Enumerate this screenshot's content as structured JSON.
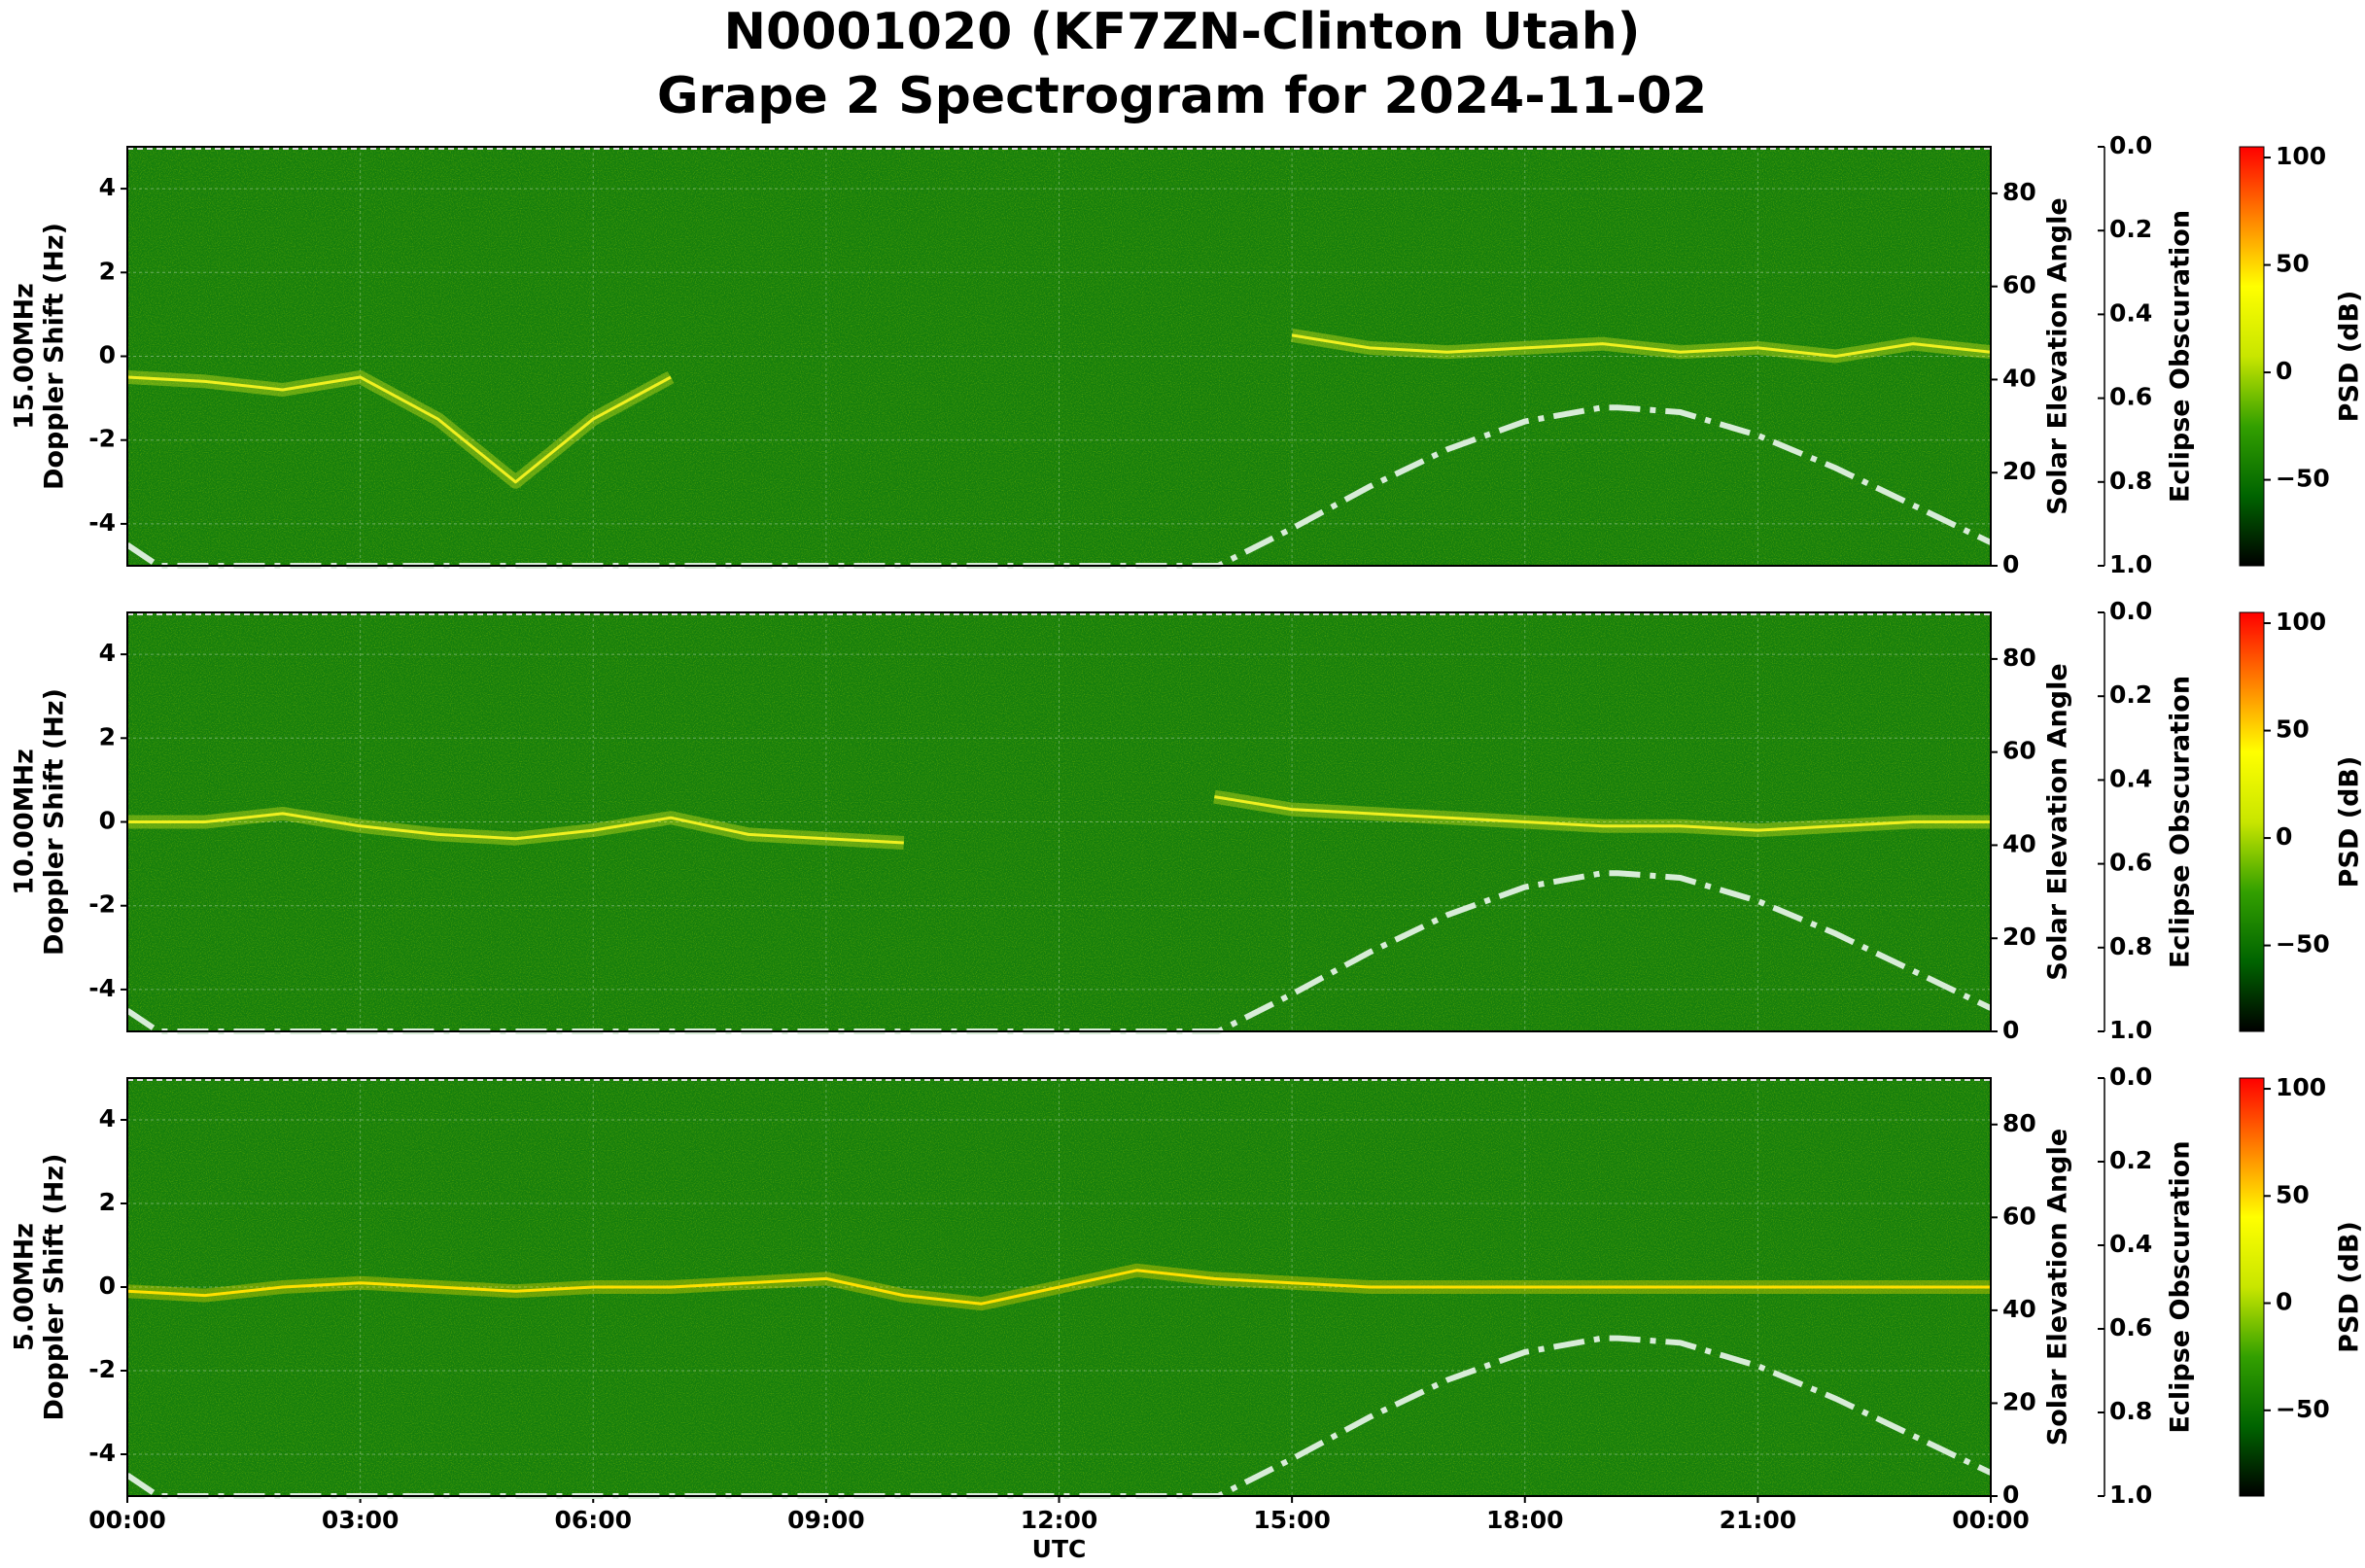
{
  "title": [
    "N0001020 (KF7ZN-Clinton Utah)",
    "Grape 2 Spectrogram for 2024-11-02"
  ],
  "chart_data": [
    {
      "type": "spectrogram",
      "band": "15.00MHz",
      "ylabel": "Doppler Shift (Hz)",
      "y2label": "Solar Elevation Angle",
      "y3label": "Eclipse Obscuration",
      "colorbar_label": "PSD (dB)",
      "xlim": [
        0,
        24
      ],
      "ylim": [
        -5,
        5
      ],
      "yticks": [
        -4,
        -2,
        0,
        2,
        4
      ],
      "y2lim": [
        0,
        90
      ],
      "y2ticks": [
        0,
        20,
        40,
        60,
        80
      ],
      "y3lim": [
        0,
        1
      ],
      "y3ticks": [
        {
          "value": 0,
          "label": "0.0"
        },
        0.2,
        0.4,
        0.6,
        0.8,
        {
          "value": 1,
          "label": "1.0"
        }
      ],
      "clim": [
        -90,
        105
      ],
      "cticks": [
        {
          "value": -50,
          "label": "−50"
        },
        0,
        50,
        100
      ],
      "colormap": [
        "#000000",
        "#006400",
        "#33a000",
        "#c8e600",
        "#ffff00",
        "#ff8000",
        "#ff0000"
      ],
      "grid": true,
      "trace": {
        "color": "#f0f020",
        "x": [
          0,
          1,
          2,
          3,
          4,
          5,
          6,
          7,
          8,
          9,
          10,
          11,
          12,
          13,
          14,
          15,
          16,
          17,
          18,
          19,
          20,
          21,
          22,
          23,
          24
        ],
        "values": [
          -0.5,
          -0.6,
          -0.8,
          -0.5,
          -1.5,
          -3.0,
          -1.5,
          -0.5,
          null,
          null,
          null,
          null,
          null,
          null,
          null,
          0.5,
          0.2,
          0.1,
          0.2,
          0.3,
          0.1,
          0.2,
          0.0,
          0.3,
          0.1
        ]
      },
      "solar_elevation": {
        "axis": "y2",
        "color": "#d8ecd8",
        "x": [
          0,
          0.4,
          14.05,
          15,
          16,
          17,
          18,
          19,
          19.2,
          20,
          21,
          22,
          23,
          24
        ],
        "values": [
          4.5,
          0,
          0,
          8,
          17,
          25,
          31,
          34,
          34,
          33,
          28,
          21,
          13,
          5
        ]
      }
    },
    {
      "type": "spectrogram",
      "band": "10.00MHz",
      "ylabel": "Doppler Shift (Hz)",
      "y2label": "Solar Elevation Angle",
      "y3label": "Eclipse Obscuration",
      "colorbar_label": "PSD (dB)",
      "xlim": [
        0,
        24
      ],
      "ylim": [
        -5,
        5
      ],
      "yticks": [
        -4,
        -2,
        0,
        2,
        4
      ],
      "y2lim": [
        0,
        90
      ],
      "y2ticks": [
        0,
        20,
        40,
        60,
        80
      ],
      "y3lim": [
        0,
        1
      ],
      "y3ticks": [
        {
          "value": 0,
          "label": "0.0"
        },
        0.2,
        0.4,
        0.6,
        0.8,
        {
          "value": 1,
          "label": "1.0"
        }
      ],
      "clim": [
        -90,
        105
      ],
      "cticks": [
        {
          "value": -50,
          "label": "−50"
        },
        0,
        50,
        100
      ],
      "colormap": [
        "#000000",
        "#006400",
        "#33a000",
        "#c8e600",
        "#ffff00",
        "#ff8000",
        "#ff0000"
      ],
      "grid": true,
      "trace": {
        "color": "#f0f020",
        "x": [
          0,
          1,
          2,
          3,
          4,
          5,
          6,
          7,
          8,
          9,
          10,
          11,
          12,
          13,
          14,
          15,
          16,
          17,
          18,
          19,
          20,
          21,
          22,
          23,
          24
        ],
        "values": [
          0,
          0,
          0.2,
          -0.1,
          -0.3,
          -0.4,
          -0.2,
          0.1,
          -0.3,
          -0.4,
          -0.5,
          null,
          null,
          null,
          0.6,
          0.3,
          0.2,
          0.1,
          0,
          -0.1,
          -0.1,
          -0.2,
          -0.1,
          0,
          0
        ]
      },
      "solar_elevation": {
        "axis": "y2",
        "color": "#d8ecd8",
        "x": [
          0,
          0.4,
          14.05,
          15,
          16,
          17,
          18,
          19,
          19.2,
          20,
          21,
          22,
          23,
          24
        ],
        "values": [
          4.5,
          0,
          0,
          8,
          17,
          25,
          31,
          34,
          34,
          33,
          28,
          21,
          13,
          5
        ]
      }
    },
    {
      "type": "spectrogram",
      "band": "5.00MHz",
      "ylabel": "Doppler Shift (Hz)",
      "y2label": "Solar Elevation Angle",
      "y3label": "Eclipse Obscuration",
      "colorbar_label": "PSD (dB)",
      "xlabel": "UTC",
      "xlim": [
        0,
        24
      ],
      "xticks": [
        {
          "value": 0,
          "label": "00:00"
        },
        {
          "value": 3,
          "label": "03:00"
        },
        {
          "value": 6,
          "label": "06:00"
        },
        {
          "value": 9,
          "label": "09:00"
        },
        {
          "value": 12,
          "label": "12:00"
        },
        {
          "value": 15,
          "label": "15:00"
        },
        {
          "value": 18,
          "label": "18:00"
        },
        {
          "value": 21,
          "label": "21:00"
        },
        {
          "value": 24,
          "label": "00:00"
        }
      ],
      "ylim": [
        -5,
        5
      ],
      "yticks": [
        -4,
        -2,
        0,
        2,
        4
      ],
      "y2lim": [
        0,
        90
      ],
      "y2ticks": [
        0,
        20,
        40,
        60,
        80
      ],
      "y3lim": [
        0,
        1
      ],
      "y3ticks": [
        {
          "value": 0,
          "label": "0.0"
        },
        0.2,
        0.4,
        0.6,
        0.8,
        {
          "value": 1,
          "label": "1.0"
        }
      ],
      "clim": [
        -90,
        105
      ],
      "cticks": [
        {
          "value": -50,
          "label": "−50"
        },
        0,
        50,
        100
      ],
      "colormap": [
        "#000000",
        "#006400",
        "#33a000",
        "#c8e600",
        "#ffff00",
        "#ff8000",
        "#ff0000"
      ],
      "grid": true,
      "trace": {
        "color": "#ffe000",
        "x": [
          0,
          1,
          2,
          3,
          4,
          5,
          6,
          7,
          8,
          9,
          10,
          11,
          12,
          13,
          14,
          15,
          16,
          17,
          18,
          19,
          20,
          21,
          22,
          23,
          24
        ],
        "values": [
          -0.1,
          -0.2,
          0,
          0.1,
          0,
          -0.1,
          0,
          0,
          0.1,
          0.2,
          -0.2,
          -0.4,
          0,
          0.4,
          0.2,
          0.1,
          0,
          0,
          0,
          0,
          0,
          0,
          0,
          0,
          0
        ]
      },
      "solar_elevation": {
        "axis": "y2",
        "color": "#d8ecd8",
        "x": [
          0,
          0.4,
          14.05,
          15,
          16,
          17,
          18,
          19,
          19.2,
          20,
          21,
          22,
          23,
          24
        ],
        "values": [
          4.5,
          0,
          0,
          8,
          17,
          25,
          31,
          34,
          34,
          33,
          28,
          21,
          13,
          5
        ]
      }
    }
  ]
}
